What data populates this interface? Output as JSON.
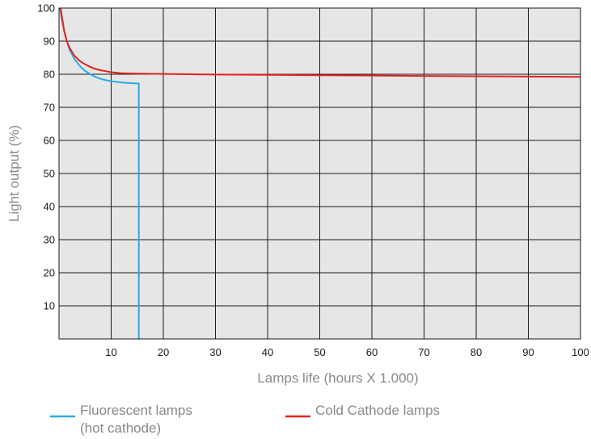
{
  "chart_data": {
    "type": "line",
    "title": "",
    "xlabel": "Lamps life (hours X 1.000)",
    "ylabel": "Light output (%)",
    "xlim": [
      0,
      100
    ],
    "ylim": [
      0,
      100
    ],
    "grid": true,
    "x_ticks": [
      10,
      20,
      30,
      40,
      50,
      60,
      70,
      80,
      90,
      100
    ],
    "y_ticks": [
      10,
      20,
      30,
      40,
      50,
      60,
      70,
      80,
      90,
      100
    ],
    "legend_position": "bottom",
    "colors": {
      "plot_background": "#e6e6e6",
      "grid": "#1a1a1a"
    },
    "series": [
      {
        "name": "Fluorescent lamps (hot cathode)",
        "legend_lines": [
          "Fluorescent lamps",
          "(hot cathode)"
        ],
        "color": "#29abe2",
        "x": [
          0.2,
          0.5,
          1,
          1.5,
          2,
          3,
          4,
          5,
          6,
          7,
          8,
          9,
          10,
          11,
          12,
          13,
          14,
          15.3,
          15.3,
          15.3
        ],
        "y": [
          100,
          97,
          93,
          90,
          87.5,
          84.5,
          82.5,
          81,
          80,
          79.2,
          78.6,
          78.2,
          77.9,
          77.7,
          77.5,
          77.4,
          77.3,
          77.2,
          70,
          0
        ]
      },
      {
        "name": "Cold Cathode lamps",
        "legend_lines": [
          "Cold Cathode lamps"
        ],
        "color": "#e2231a",
        "x": [
          0.3,
          0.7,
          1,
          1.5,
          2,
          3,
          4,
          5,
          6,
          7,
          8,
          9,
          10,
          12,
          15,
          20,
          30,
          40,
          50,
          60,
          70,
          80,
          90,
          100
        ],
        "y": [
          100,
          96,
          93,
          90,
          88,
          85.5,
          84,
          83,
          82.2,
          81.6,
          81.2,
          80.9,
          80.6,
          80.3,
          80.2,
          80.1,
          79.9,
          79.8,
          79.7,
          79.6,
          79.5,
          79.4,
          79.3,
          79.2
        ]
      }
    ]
  }
}
